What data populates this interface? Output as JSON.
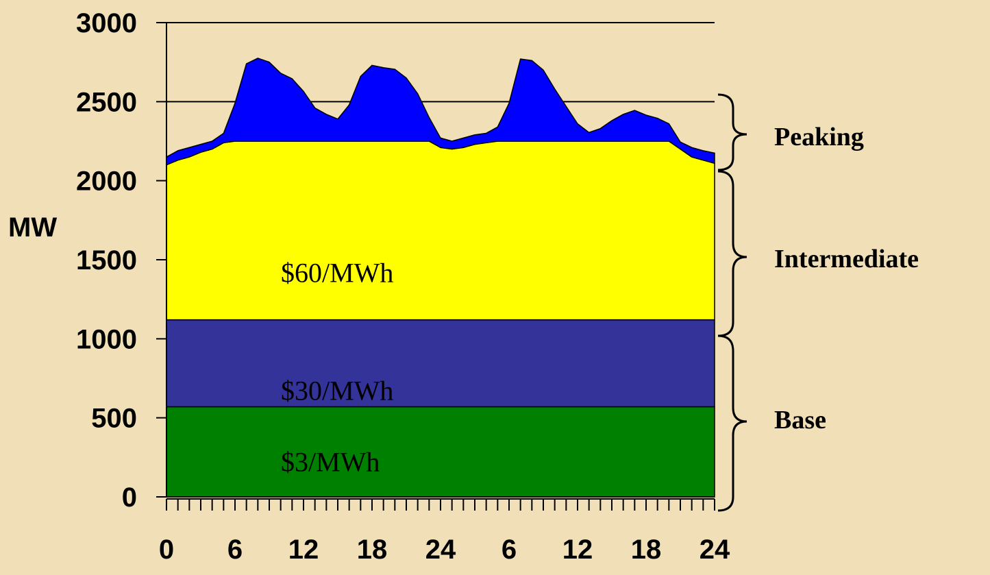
{
  "chart_data": {
    "type": "stacked_area",
    "y_label": "MW",
    "x": [
      0,
      1,
      2,
      3,
      4,
      5,
      6,
      7,
      8,
      9,
      10,
      11,
      12,
      13,
      14,
      15,
      16,
      17,
      18,
      19,
      20,
      21,
      22,
      23,
      24,
      25,
      26,
      27,
      28,
      29,
      30,
      31,
      32,
      33,
      34,
      35,
      36,
      37,
      38,
      39,
      40,
      41,
      42,
      43,
      44,
      45,
      46,
      47,
      48
    ],
    "xlim": [
      0,
      48
    ],
    "xticks": [
      0,
      6,
      12,
      18,
      24,
      {
        "value": 30,
        "label": "6"
      },
      {
        "value": 36,
        "label": "12"
      },
      {
        "value": 42,
        "label": "18"
      },
      {
        "value": 48,
        "label": "24"
      }
    ],
    "ylim": [
      0,
      3000
    ],
    "yticks": [
      0,
      500,
      1000,
      1500,
      2000,
      2500,
      3000
    ],
    "grid": true,
    "series": [
      {
        "name": "$3/MWh",
        "color": "#008000",
        "values": [
          570,
          570,
          570,
          570,
          570,
          570,
          570,
          570,
          570,
          570,
          570,
          570,
          570,
          570,
          570,
          570,
          570,
          570,
          570,
          570,
          570,
          570,
          570,
          570,
          570,
          570,
          570,
          570,
          570,
          570,
          570,
          570,
          570,
          570,
          570,
          570,
          570,
          570,
          570,
          570,
          570,
          570,
          570,
          570,
          570,
          570,
          570,
          570,
          570
        ]
      },
      {
        "name": "$30/MWh",
        "color": "#333399",
        "values": [
          550,
          550,
          550,
          550,
          550,
          550,
          550,
          550,
          550,
          550,
          550,
          550,
          550,
          550,
          550,
          550,
          550,
          550,
          550,
          550,
          550,
          550,
          550,
          550,
          550,
          550,
          550,
          550,
          550,
          550,
          550,
          550,
          550,
          550,
          550,
          550,
          550,
          550,
          550,
          550,
          550,
          550,
          550,
          550,
          550,
          550,
          550,
          550,
          550
        ]
      },
      {
        "name": "$60/MWh",
        "color": "#ffff00",
        "values": [
          980,
          1010,
          1030,
          1060,
          1080,
          1120,
          1130,
          1130,
          1130,
          1130,
          1130,
          1130,
          1130,
          1130,
          1130,
          1130,
          1130,
          1130,
          1130,
          1130,
          1130,
          1130,
          1130,
          1130,
          1090,
          1080,
          1090,
          1110,
          1120,
          1130,
          1130,
          1130,
          1130,
          1130,
          1130,
          1130,
          1130,
          1130,
          1130,
          1130,
          1130,
          1130,
          1130,
          1130,
          1130,
          1080,
          1030,
          1010,
          990
        ]
      },
      {
        "color": "#0000ff",
        "values": [
          50,
          60,
          60,
          50,
          50,
          60,
          240,
          490,
          525,
          500,
          430,
          395,
          315,
          210,
          170,
          140,
          230,
          410,
          480,
          465,
          455,
          400,
          300,
          150,
          60,
          50,
          60,
          60,
          60,
          90,
          240,
          520,
          510,
          450,
          330,
          220,
          110,
          55,
          80,
          130,
          170,
          195,
          165,
          145,
          110,
          45,
          60,
          60,
          65
        ]
      }
    ],
    "bands": [
      "Peaking",
      "Intermediate",
      "Base"
    ]
  }
}
